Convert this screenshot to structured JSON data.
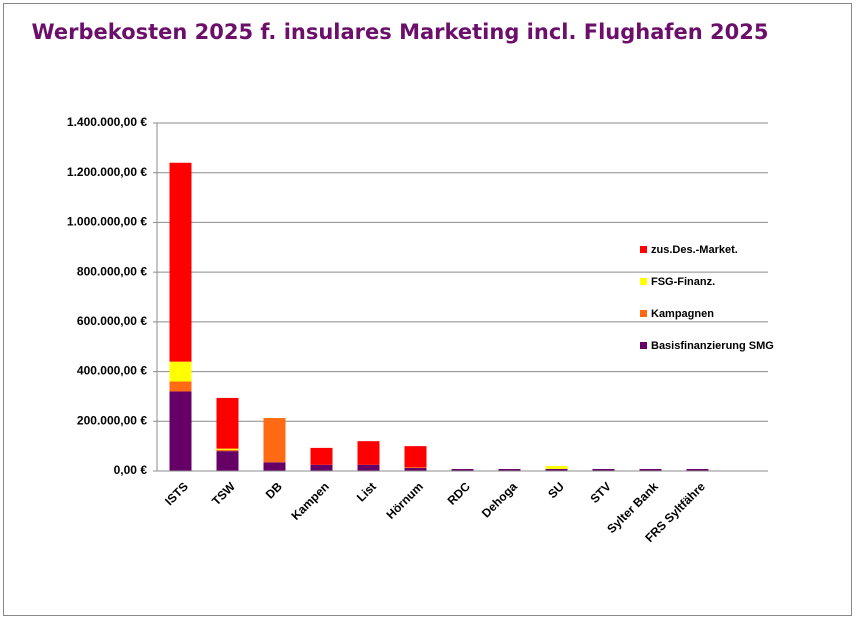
{
  "chart_data": {
    "type": "stacked_bar",
    "title": "Werbekosten 2025 f. insulares Marketing incl. Flughafen 2025",
    "categories": [
      "ISTS",
      "TSW",
      "DB",
      "Kampen",
      "List",
      "Hörnum",
      "RDC",
      "Dehoga",
      "SU",
      "STV",
      "Sylter Bank",
      "FRS Syltfähre",
      null
    ],
    "series": [
      {
        "name": "Basisfinanzierung SMG",
        "color": "#660066",
        "values": [
          320000,
          80000,
          35000,
          25000,
          25000,
          12000,
          8000,
          8000,
          8000,
          8000,
          8000,
          8000,
          null
        ]
      },
      {
        "name": "Kampagnen",
        "color": "#ff6a13",
        "values": [
          40000,
          5000,
          178000,
          0,
          0,
          3000,
          0,
          0,
          0,
          0,
          0,
          0,
          null
        ]
      },
      {
        "name": "FSG-Finanz.",
        "color": "#ffff00",
        "values": [
          80000,
          5000,
          0,
          0,
          0,
          0,
          0,
          0,
          12000,
          0,
          0,
          0,
          null
        ]
      },
      {
        "name": "zus.Des.-Market.",
        "color": "#ff0000",
        "values": [
          800000,
          204000,
          0,
          68000,
          95000,
          85000,
          0,
          0,
          0,
          0,
          0,
          0,
          null
        ]
      }
    ],
    "ylim": [
      0,
      1400000
    ],
    "yticks": [
      {
        "value": 0,
        "label": "0,00 €"
      },
      {
        "value": 200000,
        "label": "200.000,00 €"
      },
      {
        "value": 400000,
        "label": "400.000,00 €"
      },
      {
        "value": 600000,
        "label": "600.000,00 €"
      },
      {
        "value": 800000,
        "label": "800.000,00 €"
      },
      {
        "value": 1000000,
        "label": "1.000.000,00 €"
      },
      {
        "value": 1200000,
        "label": "1.200.000,00 €"
      },
      {
        "value": 1400000,
        "label": "1.400.000,00 €"
      }
    ],
    "grid": true,
    "legend": "right"
  }
}
